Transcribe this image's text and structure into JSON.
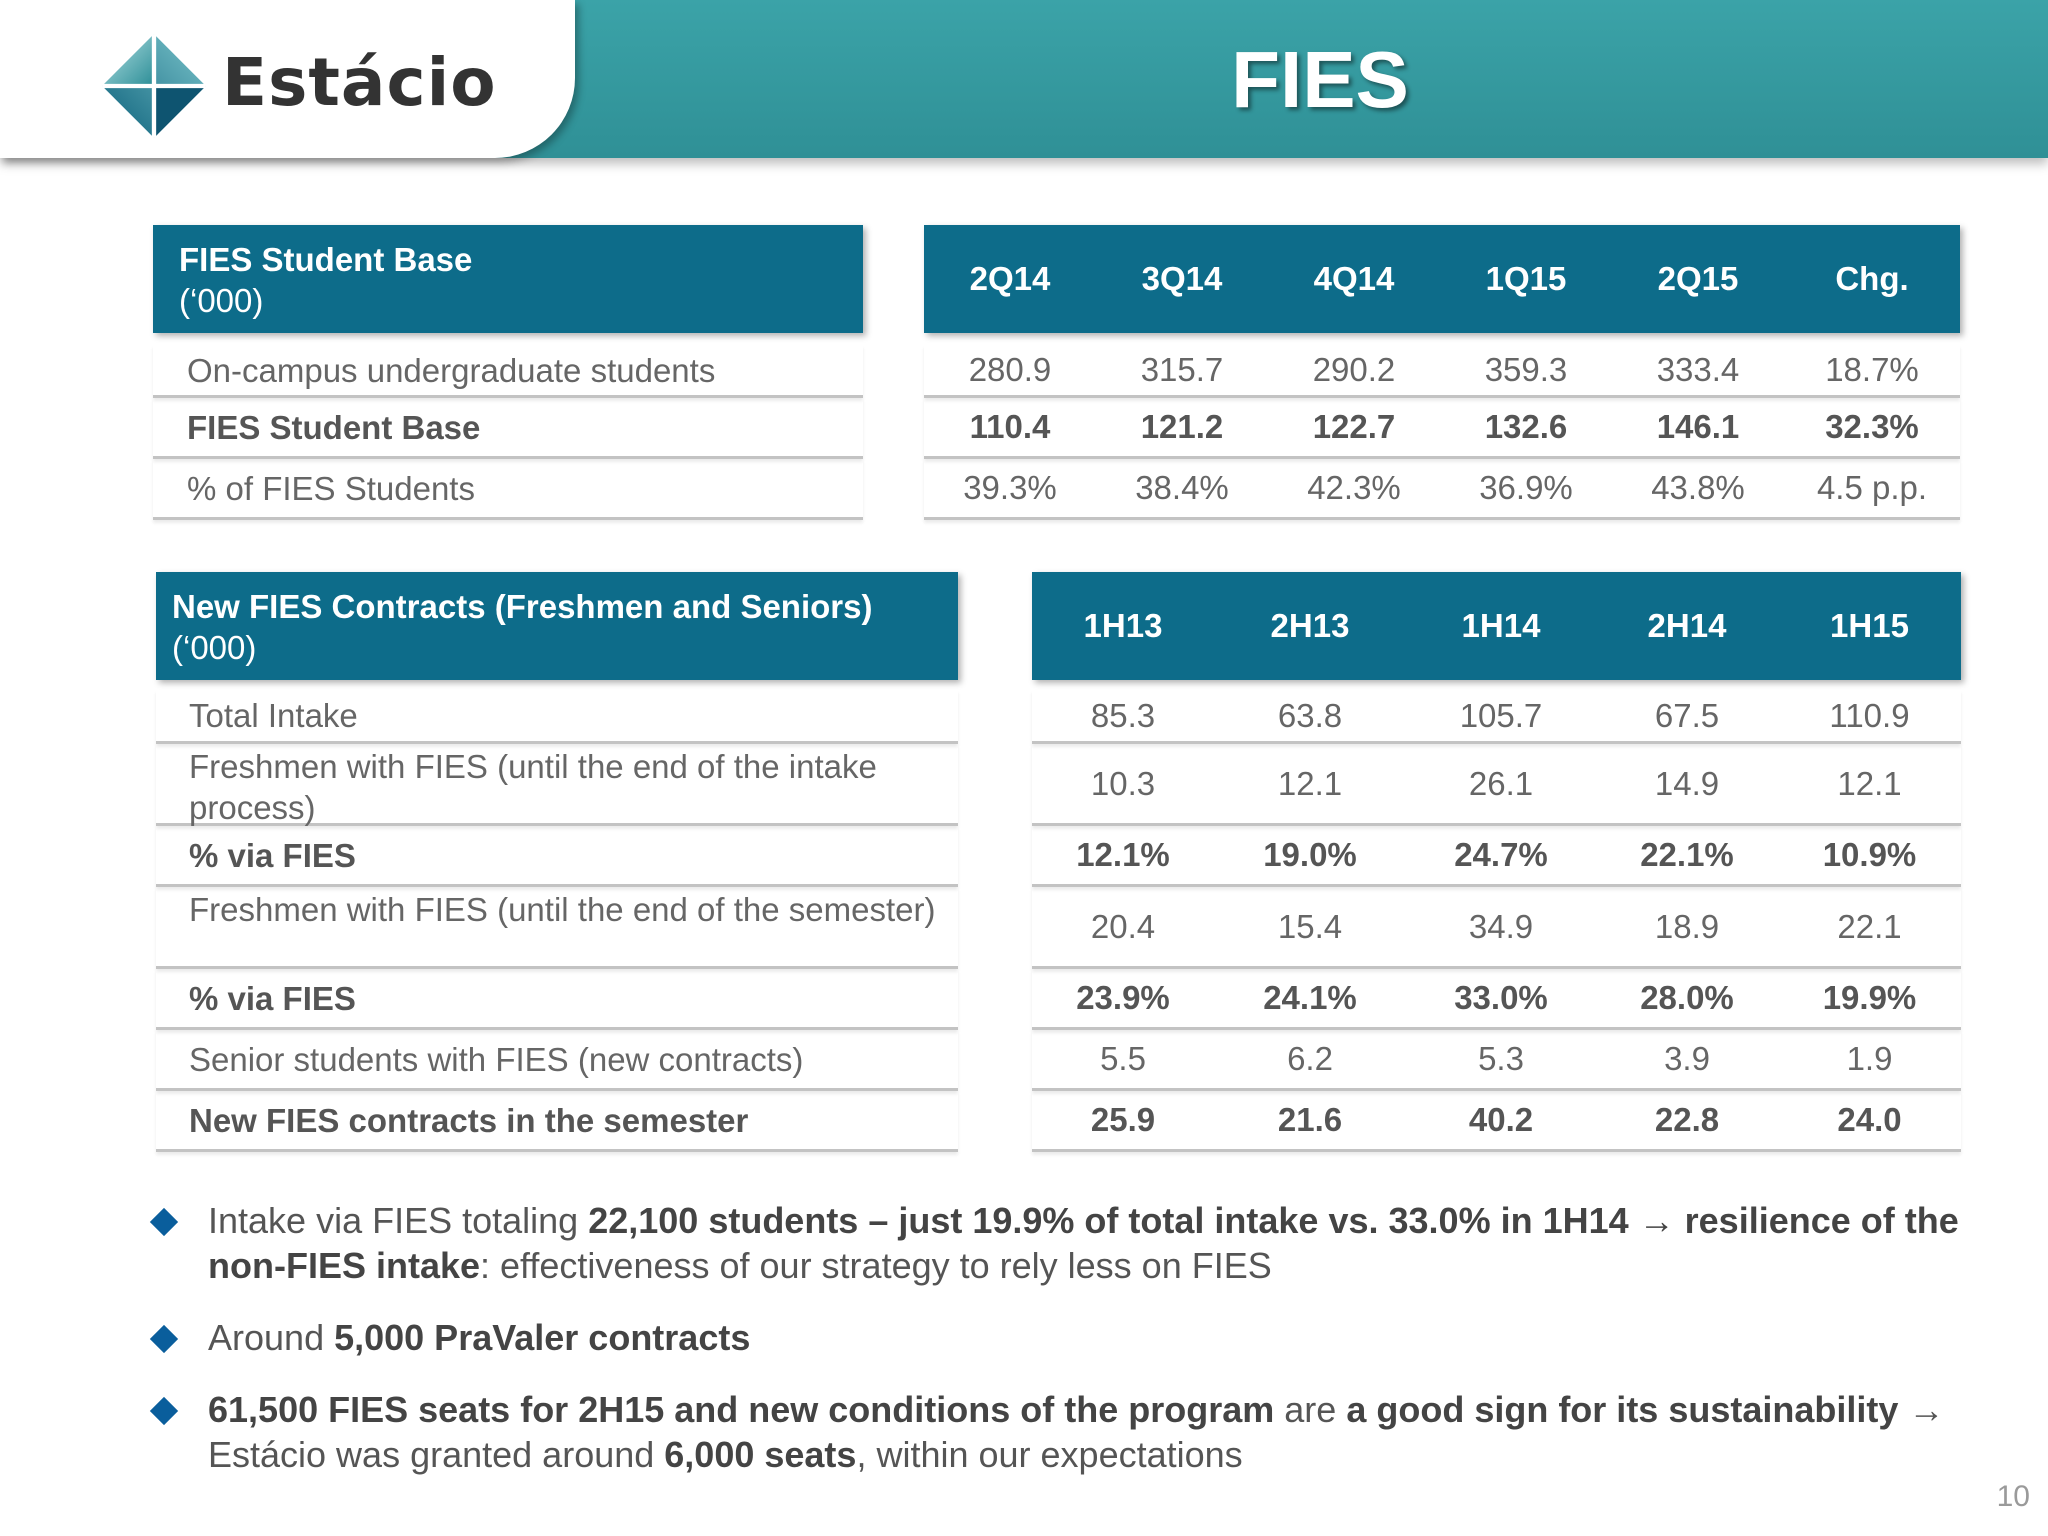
{
  "brand": {
    "name": "Estácio"
  },
  "title": "FIES",
  "colors": {
    "header_teal": "#3ba3a8",
    "table_header": "#0d6c8a",
    "bullet": "#0a5e9c"
  },
  "table1": {
    "title_line1": "FIES Student Base",
    "title_line2": "(‘000)",
    "columns": [
      "2Q14",
      "3Q14",
      "4Q14",
      "1Q15",
      "2Q15",
      "Chg."
    ],
    "rows": [
      {
        "label": "On-campus undergraduate students",
        "bold": false,
        "values": [
          "280.9",
          "315.7",
          "290.2",
          "359.3",
          "333.4",
          "18.7%"
        ]
      },
      {
        "label": "FIES Student Base",
        "bold": true,
        "values": [
          "110.4",
          "121.2",
          "122.7",
          "132.6",
          "146.1",
          "32.3%"
        ]
      },
      {
        "label": "% of FIES Students",
        "bold": false,
        "values": [
          "39.3%",
          "38.4%",
          "42.3%",
          "36.9%",
          "43.8%",
          "4.5 p.p."
        ]
      }
    ]
  },
  "table2": {
    "title_line1": "New FIES Contracts (Freshmen and Seniors)",
    "title_line2": "(‘000)",
    "columns": [
      "1H13",
      "2H13",
      "1H14",
      "2H14",
      "1H15"
    ],
    "rows": [
      {
        "label": "Total Intake",
        "bold": false,
        "values": [
          "85.3",
          "63.8",
          "105.7",
          "67.5",
          "110.9"
        ]
      },
      {
        "label": "Freshmen with FIES (until the end of the intake process)",
        "bold": false,
        "values": [
          "10.3",
          "12.1",
          "26.1",
          "14.9",
          "12.1"
        ]
      },
      {
        "label": "% via FIES",
        "bold": true,
        "values": [
          "12.1%",
          "19.0%",
          "24.7%",
          "22.1%",
          "10.9%"
        ]
      },
      {
        "label": "Freshmen with FIES (until the end of the semester)",
        "bold": false,
        "values": [
          "20.4",
          "15.4",
          "34.9",
          "18.9",
          "22.1"
        ]
      },
      {
        "label": "% via FIES",
        "bold": true,
        "values": [
          "23.9%",
          "24.1%",
          "33.0%",
          "28.0%",
          "19.9%"
        ]
      },
      {
        "label": "Senior students with FIES (new contracts)",
        "bold": false,
        "values": [
          "5.5",
          "6.2",
          "5.3",
          "3.9",
          "1.9"
        ]
      },
      {
        "label": "New FIES contracts in the semester",
        "bold": true,
        "values": [
          "25.9",
          "21.6",
          "40.2",
          "22.8",
          "24.0"
        ]
      }
    ]
  },
  "bullets": [
    {
      "p1": "Intake via FIES totaling ",
      "b1": "22,100 students – just 19.9% of total intake vs. 33.0% in 1H14 → resilience of the non-FIES intake",
      "p2": ": effectiveness of our strategy to rely less on FIES"
    },
    {
      "p1": "Around ",
      "b1": "5,000 PraValer contracts"
    },
    {
      "b1": "61,500 FIES seats for 2H15 and new conditions of the program",
      "p2": " are ",
      "b2": "a good sign for its sustainability",
      "p3": " → Estácio was granted around ",
      "b3": "6,000 seats",
      "p4": ", within our expectations"
    }
  ],
  "page_number": "10"
}
